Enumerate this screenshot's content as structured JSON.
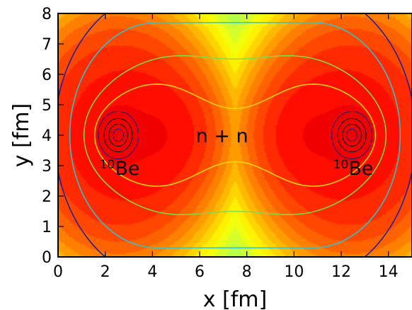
{
  "chart_data": {
    "type": "heatmap",
    "xlabel": "x [fm]",
    "ylabel": "y [fm]",
    "xlim": [
      0,
      15
    ],
    "ylim": [
      0,
      8
    ],
    "x_ticks": [
      "0",
      "2",
      "4",
      "6",
      "8",
      "10",
      "12",
      "14"
    ],
    "x_tick_values": [
      0,
      2,
      4,
      6,
      8,
      10,
      12,
      14
    ],
    "y_ticks": [
      "0",
      "1",
      "2",
      "3",
      "4",
      "5",
      "6",
      "7",
      "8"
    ],
    "y_tick_values": [
      0,
      1,
      2,
      3,
      4,
      5,
      6,
      7,
      8
    ],
    "grid": false,
    "colormap": "jet",
    "clusters": [
      {
        "superscript": "10",
        "name": "Be",
        "x": 2.55,
        "y": 4.0
      },
      {
        "superscript": "10",
        "name": "Be",
        "x": 12.45,
        "y": 4.0
      }
    ],
    "center_annotation": {
      "text": "n + n",
      "x": 7.7,
      "y": 4.0
    },
    "contour_colors": [
      "#1a1aa0",
      "#2ec4d0",
      "#7ddc50",
      "#f5d800"
    ],
    "core_colors": [
      "#1a1a80",
      "#000000"
    ]
  }
}
